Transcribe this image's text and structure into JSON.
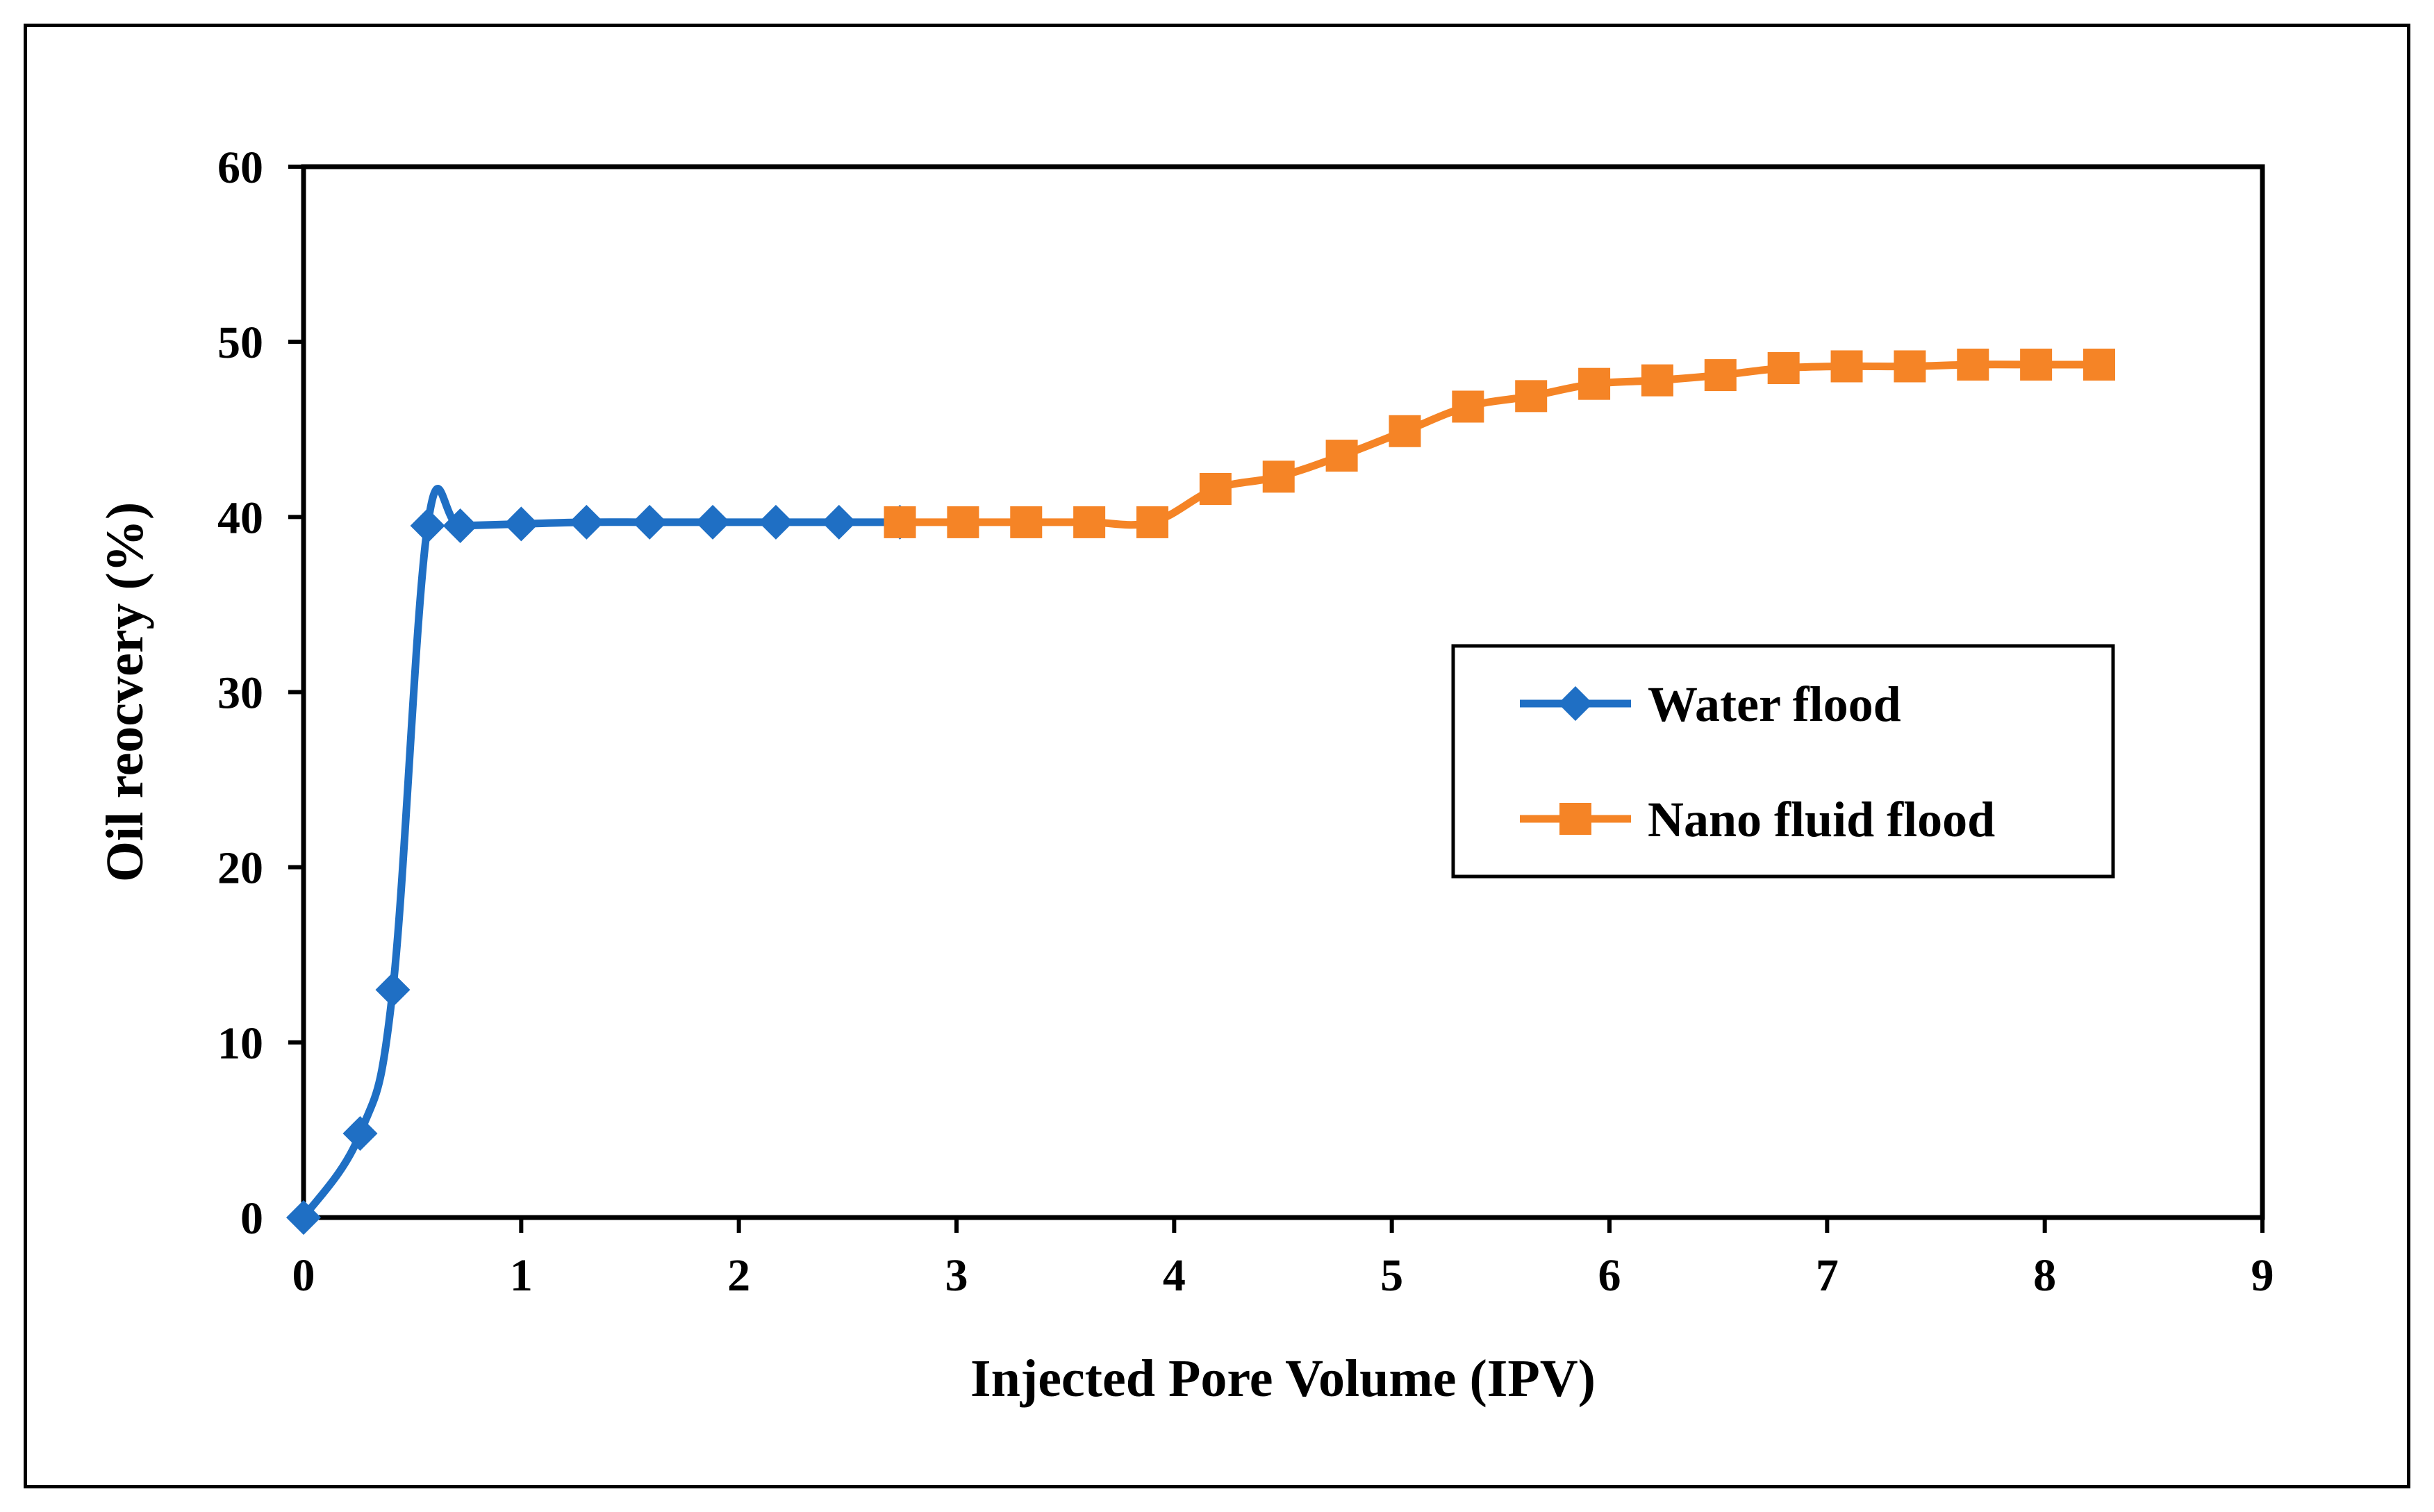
{
  "chart_data": {
    "type": "line",
    "title": "",
    "xlabel": "Injected Pore Volume (IPV)",
    "ylabel": "Oil reocvery (%)",
    "xlim": [
      0,
      9
    ],
    "ylim": [
      0,
      60
    ],
    "xticks": [
      0,
      1,
      2,
      3,
      4,
      5,
      6,
      7,
      8,
      9
    ],
    "yticks": [
      0,
      10,
      20,
      30,
      40,
      50,
      60
    ],
    "grid": false,
    "legend_position": "right",
    "series": [
      {
        "name": "Water flood",
        "color": "#1f6fc4",
        "marker": "diamond",
        "x": [
          0,
          0.26,
          0.41,
          0.57,
          0.72,
          1.0,
          1.3,
          1.59,
          1.88,
          2.17,
          2.46,
          2.74
        ],
        "y": [
          0,
          4.8,
          13,
          39.5,
          39.5,
          39.6,
          39.7,
          39.7,
          39.7,
          39.7,
          39.7,
          39.7
        ]
      },
      {
        "name": "Nano fluid flood",
        "color": "#f58426",
        "marker": "square",
        "x": [
          2.74,
          3.03,
          3.32,
          3.61,
          3.9,
          4.19,
          4.48,
          4.77,
          5.06,
          5.35,
          5.64,
          5.93,
          6.22,
          6.51,
          6.8,
          7.09,
          7.38,
          7.67,
          7.96,
          8.25
        ],
        "y": [
          39.7,
          39.7,
          39.7,
          39.7,
          39.7,
          41.6,
          42.3,
          43.5,
          44.9,
          46.3,
          46.9,
          47.6,
          47.8,
          48.1,
          48.5,
          48.6,
          48.6,
          48.7,
          48.7,
          48.7
        ]
      }
    ]
  }
}
